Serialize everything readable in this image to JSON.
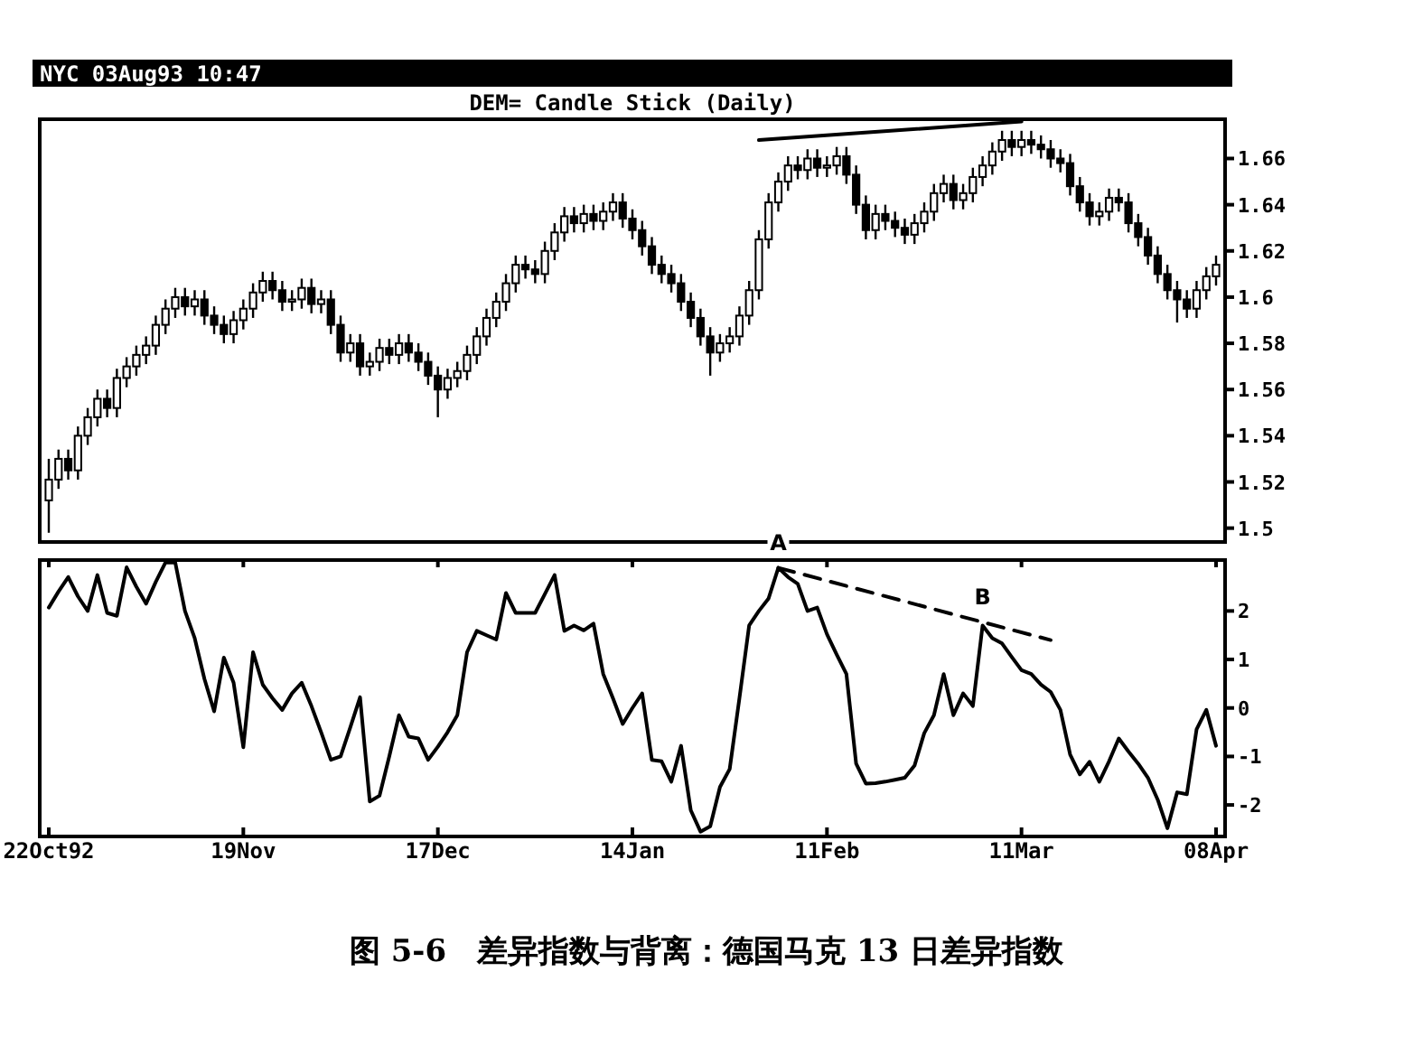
{
  "chart_data": [
    {
      "type": "candlestick",
      "title": "DEM= Candle Stick (Daily)",
      "subtitle": "NYC 03Aug93 10:47",
      "color": "#000000",
      "categories": [
        null,
        null,
        null,
        null,
        null,
        null,
        null,
        null,
        null,
        null,
        null,
        null,
        null,
        null,
        null,
        null,
        null,
        null,
        null,
        null,
        null,
        null,
        null,
        null,
        null,
        null,
        null,
        null,
        null,
        null,
        null,
        null,
        null,
        null,
        null,
        null,
        null,
        null,
        null,
        null,
        null,
        null,
        null,
        null,
        null,
        null,
        null,
        null,
        null,
        null,
        null,
        null,
        null,
        null,
        null,
        null,
        null,
        null,
        null,
        null,
        null,
        null,
        null,
        null,
        null,
        null,
        null,
        null,
        null,
        null,
        null,
        null,
        null,
        null,
        null,
        null,
        null,
        null,
        null,
        null,
        null,
        null,
        null,
        null,
        null,
        null,
        null,
        null,
        null,
        null,
        null,
        null,
        null,
        null,
        null,
        null,
        null,
        null,
        null,
        null,
        null,
        null,
        null,
        null,
        null,
        null,
        null,
        null,
        null,
        null,
        null,
        null,
        null,
        null,
        null,
        null,
        null,
        null,
        null,
        null,
        null
      ],
      "ohlc": [
        [
          1.512,
          1.53,
          1.498,
          1.521
        ],
        [
          1.521,
          1.534,
          1.517,
          1.53
        ],
        [
          1.53,
          1.534,
          1.521,
          1.525
        ],
        [
          1.525,
          1.544,
          1.521,
          1.54
        ],
        [
          1.54,
          1.552,
          1.536,
          1.548
        ],
        [
          1.548,
          1.56,
          1.544,
          1.556
        ],
        [
          1.556,
          1.56,
          1.548,
          1.552
        ],
        [
          1.552,
          1.569,
          1.548,
          1.565
        ],
        [
          1.565,
          1.574,
          1.561,
          1.57
        ],
        [
          1.57,
          1.579,
          1.566,
          1.575
        ],
        [
          1.575,
          1.583,
          1.571,
          1.579
        ],
        [
          1.579,
          1.592,
          1.575,
          1.588
        ],
        [
          1.588,
          1.599,
          1.584,
          1.595
        ],
        [
          1.595,
          1.604,
          1.591,
          1.6
        ],
        [
          1.6,
          1.604,
          1.592,
          1.596
        ],
        [
          1.596,
          1.603,
          1.592,
          1.599
        ],
        [
          1.599,
          1.603,
          1.588,
          1.592
        ],
        [
          1.592,
          1.596,
          1.584,
          1.588
        ],
        [
          1.588,
          1.592,
          1.58,
          1.584
        ],
        [
          1.584,
          1.594,
          1.58,
          1.59
        ],
        [
          1.59,
          1.599,
          1.586,
          1.595
        ],
        [
          1.595,
          1.606,
          1.591,
          1.602
        ],
        [
          1.602,
          1.611,
          1.598,
          1.607
        ],
        [
          1.607,
          1.611,
          1.599,
          1.603
        ],
        [
          1.603,
          1.607,
          1.594,
          1.598
        ],
        [
          1.598,
          1.603,
          1.594,
          1.599
        ],
        [
          1.599,
          1.608,
          1.595,
          1.604
        ],
        [
          1.604,
          1.608,
          1.593,
          1.597
        ],
        [
          1.597,
          1.603,
          1.593,
          1.599
        ],
        [
          1.599,
          1.603,
          1.584,
          1.588
        ],
        [
          1.588,
          1.592,
          1.572,
          1.576
        ],
        [
          1.576,
          1.584,
          1.572,
          1.58
        ],
        [
          1.58,
          1.584,
          1.566,
          1.57
        ],
        [
          1.57,
          1.576,
          1.566,
          1.572
        ],
        [
          1.572,
          1.582,
          1.568,
          1.578
        ],
        [
          1.578,
          1.582,
          1.571,
          1.575
        ],
        [
          1.575,
          1.584,
          1.571,
          1.58
        ],
        [
          1.58,
          1.584,
          1.572,
          1.576
        ],
        [
          1.576,
          1.58,
          1.568,
          1.572
        ],
        [
          1.572,
          1.576,
          1.562,
          1.566
        ],
        [
          1.566,
          1.57,
          1.548,
          1.56
        ],
        [
          1.56,
          1.569,
          1.556,
          1.565
        ],
        [
          1.565,
          1.572,
          1.561,
          1.568
        ],
        [
          1.568,
          1.579,
          1.564,
          1.575
        ],
        [
          1.575,
          1.587,
          1.571,
          1.583
        ],
        [
          1.583,
          1.595,
          1.579,
          1.591
        ],
        [
          1.591,
          1.602,
          1.587,
          1.598
        ],
        [
          1.598,
          1.61,
          1.594,
          1.606
        ],
        [
          1.606,
          1.618,
          1.602,
          1.614
        ],
        [
          1.614,
          1.618,
          1.608,
          1.612
        ],
        [
          1.612,
          1.616,
          1.606,
          1.61
        ],
        [
          1.61,
          1.624,
          1.606,
          1.62
        ],
        [
          1.62,
          1.632,
          1.616,
          1.628
        ],
        [
          1.628,
          1.639,
          1.624,
          1.635
        ],
        [
          1.635,
          1.639,
          1.628,
          1.632
        ],
        [
          1.632,
          1.64,
          1.628,
          1.636
        ],
        [
          1.636,
          1.64,
          1.629,
          1.633
        ],
        [
          1.633,
          1.641,
          1.629,
          1.637
        ],
        [
          1.637,
          1.645,
          1.633,
          1.641
        ],
        [
          1.641,
          1.645,
          1.63,
          1.634
        ],
        [
          1.634,
          1.638,
          1.625,
          1.629
        ],
        [
          1.629,
          1.633,
          1.618,
          1.622
        ],
        [
          1.622,
          1.626,
          1.61,
          1.614
        ],
        [
          1.614,
          1.618,
          1.606,
          1.61
        ],
        [
          1.61,
          1.614,
          1.602,
          1.606
        ],
        [
          1.606,
          1.61,
          1.594,
          1.598
        ],
        [
          1.598,
          1.602,
          1.587,
          1.591
        ],
        [
          1.591,
          1.595,
          1.579,
          1.583
        ],
        [
          1.583,
          1.587,
          1.566,
          1.576
        ],
        [
          1.576,
          1.584,
          1.572,
          1.58
        ],
        [
          1.58,
          1.587,
          1.576,
          1.583
        ],
        [
          1.583,
          1.596,
          1.579,
          1.592
        ],
        [
          1.592,
          1.607,
          1.588,
          1.603
        ],
        [
          1.603,
          1.629,
          1.599,
          1.625
        ],
        [
          1.625,
          1.645,
          1.621,
          1.641
        ],
        [
          1.641,
          1.654,
          1.637,
          1.65
        ],
        [
          1.65,
          1.661,
          1.646,
          1.657
        ],
        [
          1.657,
          1.661,
          1.651,
          1.655
        ],
        [
          1.655,
          1.664,
          1.651,
          1.66
        ],
        [
          1.66,
          1.664,
          1.652,
          1.656
        ],
        [
          1.656,
          1.661,
          1.652,
          1.657
        ],
        [
          1.657,
          1.665,
          1.653,
          1.661
        ],
        [
          1.661,
          1.665,
          1.649,
          1.653
        ],
        [
          1.653,
          1.657,
          1.636,
          1.64
        ],
        [
          1.64,
          1.644,
          1.625,
          1.629
        ],
        [
          1.629,
          1.64,
          1.625,
          1.636
        ],
        [
          1.636,
          1.64,
          1.629,
          1.633
        ],
        [
          1.633,
          1.637,
          1.626,
          1.63
        ],
        [
          1.63,
          1.634,
          1.623,
          1.627
        ],
        [
          1.627,
          1.636,
          1.623,
          1.632
        ],
        [
          1.632,
          1.641,
          1.628,
          1.637
        ],
        [
          1.637,
          1.649,
          1.633,
          1.645
        ],
        [
          1.645,
          1.653,
          1.641,
          1.649
        ],
        [
          1.649,
          1.653,
          1.638,
          1.642
        ],
        [
          1.642,
          1.649,
          1.638,
          1.645
        ],
        [
          1.645,
          1.656,
          1.641,
          1.652
        ],
        [
          1.652,
          1.661,
          1.648,
          1.657
        ],
        [
          1.657,
          1.667,
          1.653,
          1.663
        ],
        [
          1.663,
          1.672,
          1.659,
          1.668
        ],
        [
          1.668,
          1.672,
          1.661,
          1.665
        ],
        [
          1.665,
          1.672,
          1.661,
          1.668
        ],
        [
          1.668,
          1.672,
          1.662,
          1.666
        ],
        [
          1.666,
          1.67,
          1.66,
          1.664
        ],
        [
          1.664,
          1.668,
          1.656,
          1.66
        ],
        [
          1.66,
          1.664,
          1.654,
          1.658
        ],
        [
          1.658,
          1.662,
          1.644,
          1.648
        ],
        [
          1.648,
          1.652,
          1.637,
          1.641
        ],
        [
          1.641,
          1.645,
          1.631,
          1.635
        ],
        [
          1.635,
          1.641,
          1.631,
          1.637
        ],
        [
          1.637,
          1.647,
          1.633,
          1.643
        ],
        [
          1.643,
          1.647,
          1.637,
          1.641
        ],
        [
          1.641,
          1.645,
          1.628,
          1.632
        ],
        [
          1.632,
          1.636,
          1.622,
          1.626
        ],
        [
          1.626,
          1.63,
          1.614,
          1.618
        ],
        [
          1.618,
          1.622,
          1.606,
          1.61
        ],
        [
          1.61,
          1.614,
          1.599,
          1.603
        ],
        [
          1.603,
          1.607,
          1.589,
          1.599
        ],
        [
          1.599,
          1.603,
          1.591,
          1.595
        ],
        [
          1.595,
          1.607,
          1.591,
          1.603
        ],
        [
          1.603,
          1.613,
          1.599,
          1.609
        ],
        [
          1.609,
          1.618,
          1.605,
          1.614
        ]
      ],
      "series": [
        {
          "type": "line",
          "color": "#000000",
          "values": [
            null,
            null,
            null,
            null,
            null,
            null,
            null,
            null,
            null,
            null,
            null,
            null,
            null,
            null,
            null,
            null,
            null,
            null,
            null,
            null,
            null,
            null,
            null,
            null,
            null,
            null,
            null,
            null,
            null,
            null,
            null,
            null,
            null,
            null,
            null,
            null,
            null,
            null,
            null,
            null,
            null,
            null,
            null,
            null,
            null,
            null,
            null,
            null,
            null,
            null,
            null,
            null,
            null,
            null,
            null,
            null,
            null,
            null,
            null,
            null,
            null,
            null,
            null,
            null,
            null,
            null,
            null,
            null,
            null,
            null,
            null,
            null,
            null,
            1.668,
            null,
            null,
            null,
            null,
            null,
            null,
            null,
            null,
            null,
            null,
            null,
            null,
            null,
            null,
            null,
            null,
            null,
            null,
            null,
            null,
            null,
            null,
            null,
            null,
            null,
            null,
            1.676,
            null,
            null,
            null,
            null,
            null,
            null,
            null,
            null,
            null,
            null,
            null,
            null,
            null,
            null,
            null,
            null,
            null,
            null,
            null,
            null
          ]
        }
      ],
      "ylim": [
        1.494,
        1.677
      ],
      "yticks": [
        1.5,
        1.52,
        1.54,
        1.56,
        1.58,
        1.6,
        1.62,
        1.64,
        1.66
      ]
    },
    {
      "type": "line",
      "categories": [
        "22Oct92",
        null,
        null,
        null,
        null,
        null,
        null,
        null,
        null,
        null,
        null,
        null,
        null,
        null,
        null,
        null,
        null,
        null,
        null,
        null,
        "19Nov",
        null,
        null,
        null,
        null,
        null,
        null,
        null,
        null,
        null,
        null,
        null,
        null,
        null,
        null,
        null,
        null,
        null,
        null,
        null,
        "17Dec",
        null,
        null,
        null,
        null,
        null,
        null,
        null,
        null,
        null,
        null,
        null,
        null,
        null,
        null,
        null,
        null,
        null,
        null,
        null,
        "14Jan",
        null,
        null,
        null,
        null,
        null,
        null,
        null,
        null,
        null,
        null,
        null,
        null,
        null,
        null,
        null,
        null,
        null,
        null,
        null,
        "11Feb",
        null,
        null,
        null,
        null,
        null,
        null,
        null,
        null,
        null,
        null,
        null,
        null,
        null,
        null,
        null,
        null,
        null,
        null,
        null,
        "11Mar",
        null,
        null,
        null,
        null,
        null,
        null,
        null,
        null,
        null,
        null,
        null,
        null,
        null,
        null,
        null,
        null,
        null,
        null,
        null,
        "08Apr"
      ],
      "series": [
        {
          "color": "#000000",
          "values": [
            2.07,
            2.4,
            2.7,
            2.3,
            2.0,
            2.74,
            1.96,
            1.9,
            2.9,
            2.5,
            2.15,
            2.6,
            3.0,
            3.0,
            2.0,
            1.44,
            0.6,
            -0.07,
            1.04,
            0.52,
            -0.81,
            1.15,
            0.48,
            0.2,
            -0.04,
            0.3,
            0.52,
            0.04,
            -0.5,
            -1.07,
            -1.0,
            -0.4,
            0.22,
            -1.93,
            -1.81,
            -1.0,
            -0.15,
            -0.59,
            -0.63,
            -1.07,
            -0.8,
            -0.5,
            -0.15,
            1.15,
            1.59,
            1.5,
            1.41,
            2.37,
            1.96,
            1.96,
            1.96,
            2.35,
            2.74,
            1.59,
            1.7,
            1.6,
            1.74,
            0.7,
            0.2,
            -0.33,
            0.0,
            0.3,
            -1.07,
            -1.1,
            -1.52,
            -0.78,
            -2.11,
            -2.55,
            -2.44,
            -1.63,
            -1.26,
            0.2,
            1.7,
            2.0,
            2.26,
            2.89,
            2.7,
            2.56,
            2.0,
            2.07,
            1.52,
            1.1,
            0.7,
            -1.15,
            -1.56,
            -1.55,
            -1.52,
            -1.48,
            -1.44,
            -1.19,
            -0.52,
            -0.15,
            0.7,
            -0.15,
            0.3,
            0.04,
            1.7,
            1.44,
            1.33,
            1.05,
            0.78,
            0.7,
            0.48,
            0.33,
            -0.04,
            -0.96,
            -1.37,
            -1.11,
            -1.52,
            -1.1,
            -0.63,
            -0.9,
            -1.15,
            -1.44,
            -1.89,
            -2.48,
            -1.74,
            -1.78,
            -0.44,
            -0.04,
            -0.78
          ]
        },
        {
          "color": "#000000",
          "line_style": "dashed",
          "values": [
            null,
            null,
            null,
            null,
            null,
            null,
            null,
            null,
            null,
            null,
            null,
            null,
            null,
            null,
            null,
            null,
            null,
            null,
            null,
            null,
            null,
            null,
            null,
            null,
            null,
            null,
            null,
            null,
            null,
            null,
            null,
            null,
            null,
            null,
            null,
            null,
            null,
            null,
            null,
            null,
            null,
            null,
            null,
            null,
            null,
            null,
            null,
            null,
            null,
            null,
            null,
            null,
            null,
            null,
            null,
            null,
            null,
            null,
            null,
            null,
            null,
            null,
            null,
            null,
            null,
            null,
            null,
            null,
            null,
            null,
            null,
            null,
            null,
            null,
            null,
            2.89,
            null,
            null,
            null,
            null,
            null,
            null,
            null,
            null,
            null,
            null,
            null,
            null,
            null,
            null,
            null,
            null,
            null,
            null,
            null,
            null,
            1.77,
            null,
            null,
            null,
            null,
            null,
            null,
            1.4,
            null,
            null,
            null,
            null,
            null,
            null,
            null,
            null,
            null,
            null,
            null,
            null,
            null,
            null,
            null,
            null,
            null
          ],
          "value_labels": [
            null,
            null,
            null,
            null,
            null,
            null,
            null,
            null,
            null,
            null,
            null,
            null,
            null,
            null,
            null,
            null,
            null,
            null,
            null,
            null,
            null,
            null,
            null,
            null,
            null,
            null,
            null,
            null,
            null,
            null,
            null,
            null,
            null,
            null,
            null,
            null,
            null,
            null,
            null,
            null,
            null,
            null,
            null,
            null,
            null,
            null,
            null,
            null,
            null,
            null,
            null,
            null,
            null,
            null,
            null,
            null,
            null,
            null,
            null,
            null,
            null,
            null,
            null,
            null,
            null,
            null,
            null,
            null,
            null,
            null,
            null,
            null,
            null,
            null,
            null,
            "A",
            null,
            null,
            null,
            null,
            null,
            null,
            null,
            null,
            null,
            null,
            null,
            null,
            null,
            null,
            null,
            null,
            null,
            null,
            null,
            null,
            "B",
            null,
            null,
            null,
            null,
            null,
            null,
            null,
            null,
            null,
            null,
            null,
            null,
            null,
            null,
            null,
            null,
            null,
            null,
            null,
            null,
            null,
            null,
            null,
            null
          ]
        }
      ],
      "annotations": [
        "图 5-6　差异指数与背离：德国马克 13 日差异指数"
      ],
      "ylim": [
        -2.65,
        3.05
      ],
      "yticks": [
        -2,
        -1,
        0,
        1,
        2
      ]
    }
  ]
}
